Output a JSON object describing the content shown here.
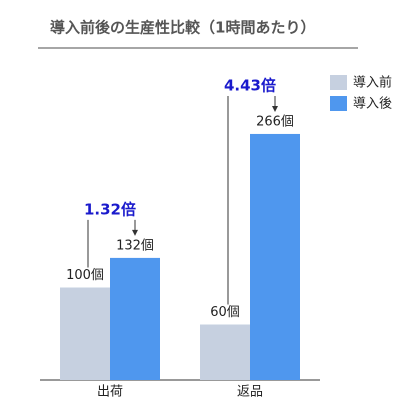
{
  "chart_data": {
    "type": "bar",
    "title": "導入前後の生産性比較（1時間あたり）",
    "categories": [
      "出荷",
      "返品"
    ],
    "series": [
      {
        "name": "導入前",
        "color": "#c6d0e0",
        "values": [
          100,
          60
        ],
        "value_labels": [
          "100個",
          "60個"
        ]
      },
      {
        "name": "導入後",
        "color": "#4f97ee",
        "values": [
          132,
          266
        ],
        "value_labels": [
          "132個",
          "266個"
        ]
      }
    ],
    "annotations": [
      "1.32倍",
      "4.43倍"
    ],
    "legend": "top-right"
  }
}
